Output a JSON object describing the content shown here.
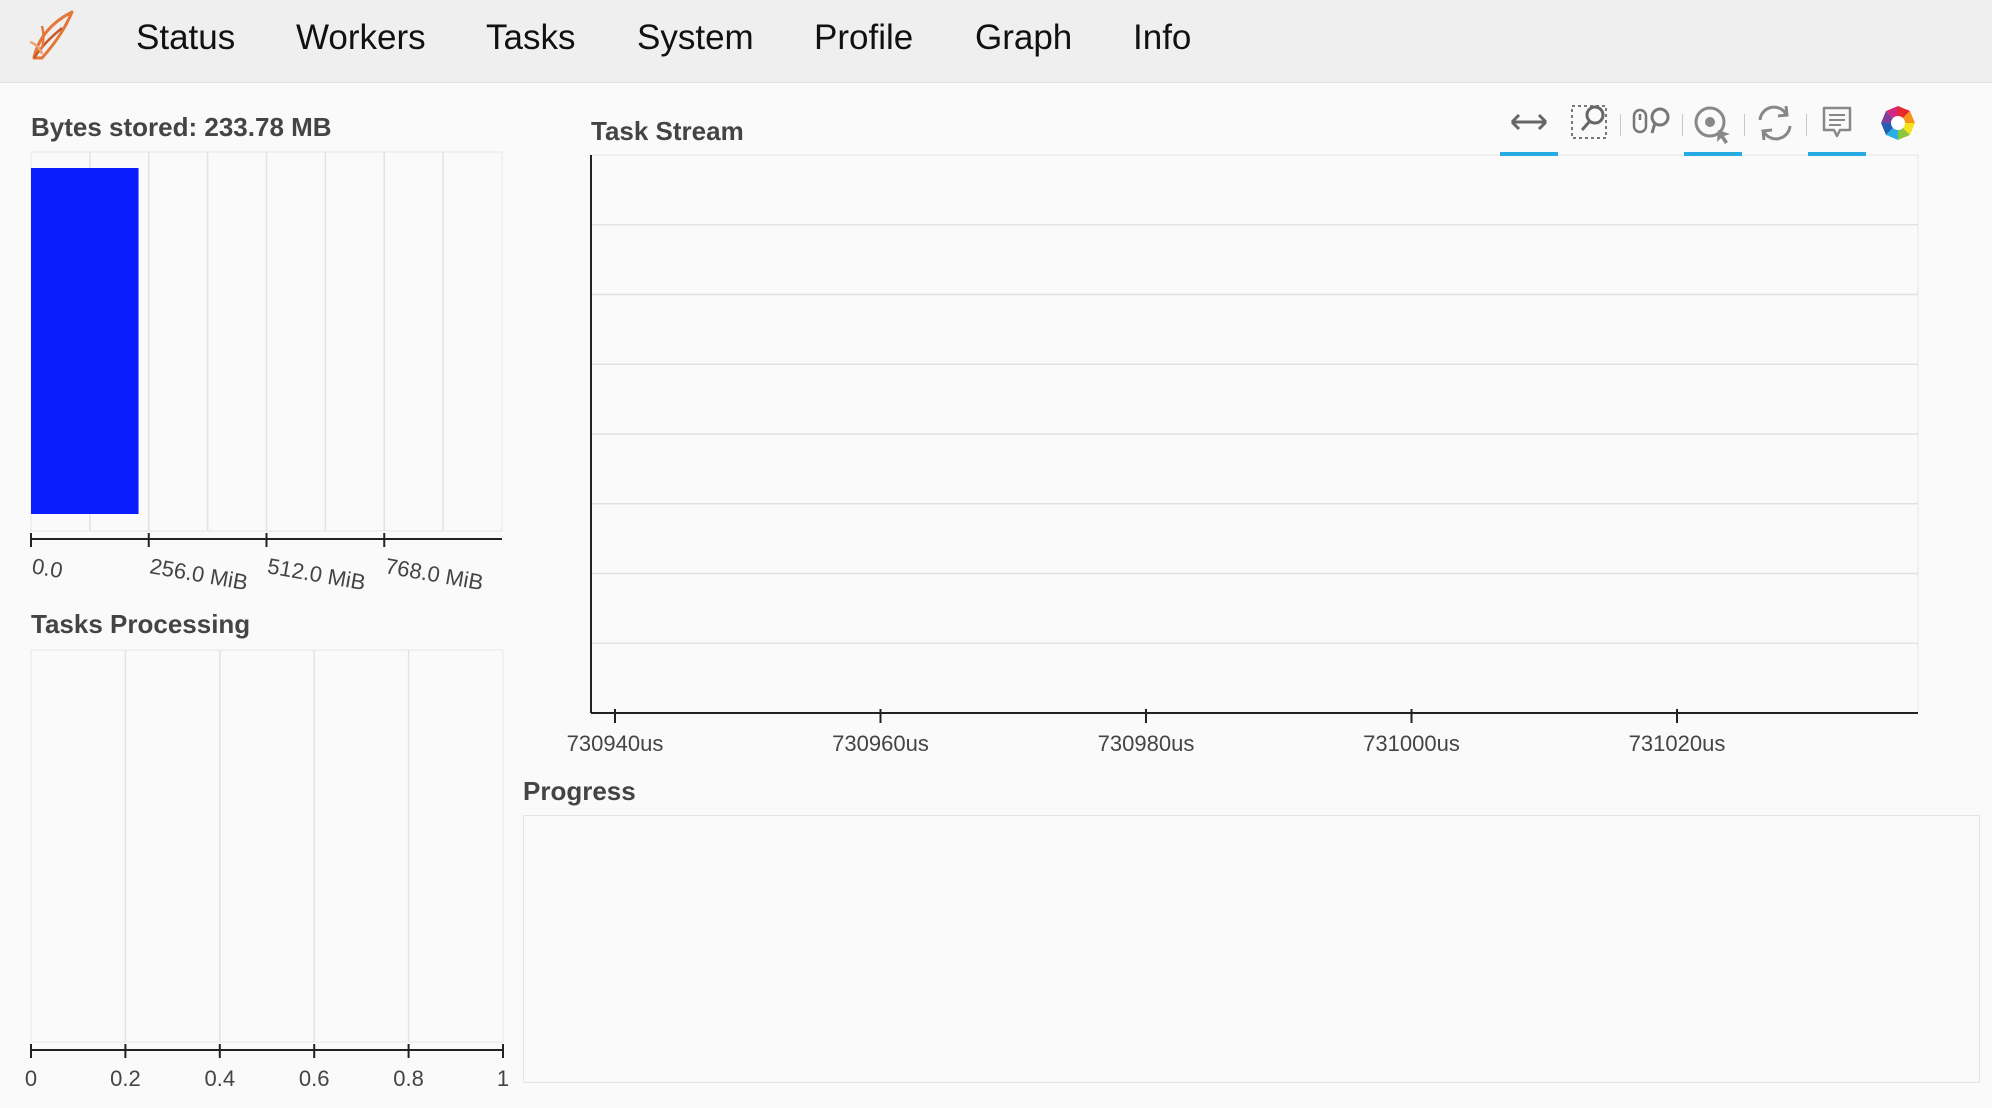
{
  "nav": {
    "logo_icon": "dask-logo-icon",
    "items": [
      "Status",
      "Workers",
      "Tasks",
      "System",
      "Profile",
      "Graph",
      "Info"
    ]
  },
  "bytes_stored": {
    "title": "Bytes stored: 233.78 MB",
    "bar_color": "#0b1cff"
  },
  "tasks_processing": {
    "title": "Tasks Processing"
  },
  "task_stream": {
    "title": "Task Stream",
    "toolbar": [
      {
        "name": "pan-tool",
        "icon": "horizontal-pan-icon",
        "active": true
      },
      {
        "name": "box-zoom-tool",
        "icon": "box-zoom-icon",
        "active": false
      },
      {
        "name": "wheel-zoom-tool",
        "icon": "wheel-zoom-icon",
        "active": false
      },
      {
        "name": "tap-tool",
        "icon": "tap-icon",
        "active": true
      },
      {
        "name": "reset-tool",
        "icon": "reset-icon",
        "active": false
      },
      {
        "name": "hover-tool",
        "icon": "hover-icon",
        "active": true
      },
      {
        "name": "bokeh-logo",
        "icon": "bokeh-logo-icon",
        "active": false
      }
    ]
  },
  "progress": {
    "title": "Progress"
  },
  "chart_data": [
    {
      "type": "bar",
      "orientation": "horizontal",
      "title": "Bytes stored: 233.78 MB",
      "categories": [
        ""
      ],
      "values": [
        233.78
      ],
      "value_unit": "MB",
      "xlim": [
        0,
        1024
      ],
      "x_unit": "MiB",
      "x_ticks": [
        0,
        256,
        512,
        768
      ],
      "x_tick_labels": [
        "0.0",
        "256.0 MiB",
        "512.0 MiB",
        "768.0 MiB"
      ],
      "grid": true,
      "color": "#0b1cff"
    },
    {
      "type": "bar",
      "orientation": "horizontal",
      "title": "Tasks Processing",
      "categories": [],
      "values": [],
      "xlim": [
        0,
        1
      ],
      "x_ticks": [
        0,
        0.2,
        0.4,
        0.6,
        0.8,
        1
      ],
      "x_tick_labels": [
        "0",
        "0.2",
        "0.4",
        "0.6",
        "0.8",
        "1"
      ],
      "grid": true
    },
    {
      "type": "bar",
      "title": "Task Stream",
      "series": [],
      "x_ticks": [
        730940,
        730960,
        730980,
        731000,
        731020
      ],
      "x_tick_labels": [
        "730940us",
        "730960us",
        "730980us",
        "731000us",
        "731020us"
      ],
      "x_unit": "us",
      "grid": true
    }
  ]
}
